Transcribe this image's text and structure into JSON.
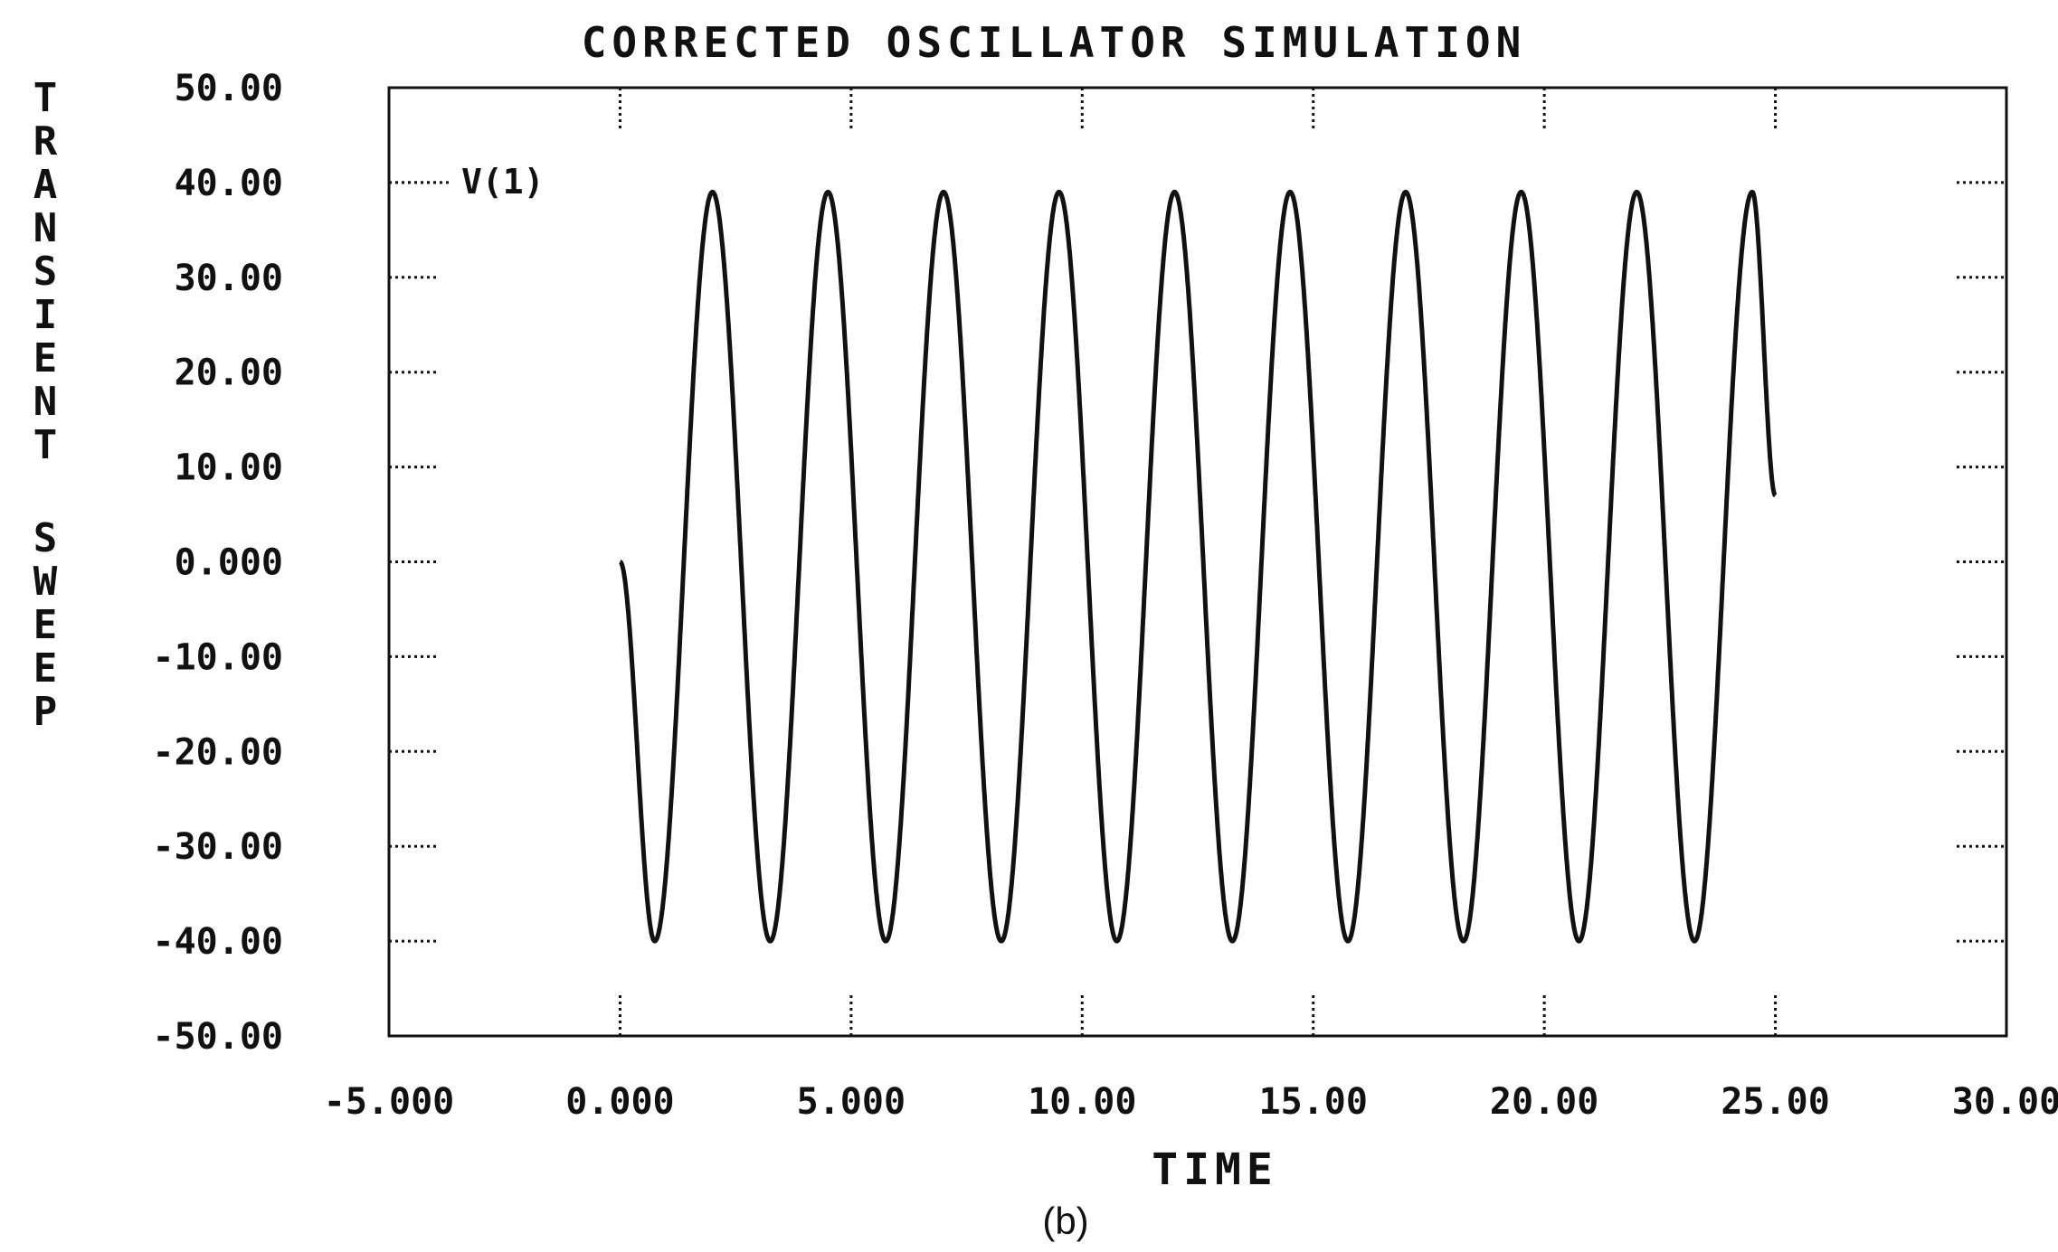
{
  "chart_data": {
    "type": "line",
    "title": "CORRECTED OSCILLATOR SIMULATION",
    "xlabel": "TIME",
    "ylabel": "TRANSIENT SWEEP",
    "caption": "(b)",
    "xlim": [
      -5,
      30
    ],
    "ylim": [
      -50,
      50
    ],
    "x_ticks": [
      -5,
      0,
      5,
      10,
      15,
      20,
      25,
      30
    ],
    "x_tick_labels": [
      "-5.000",
      "0.000",
      "5.000",
      "10.00",
      "15.00",
      "20.00",
      "25.00",
      "30.00"
    ],
    "y_ticks": [
      50,
      40,
      30,
      20,
      10,
      0,
      -10,
      -20,
      -30,
      -40,
      -50
    ],
    "y_tick_labels": [
      "50.00",
      "40.00",
      "30.00",
      "20.00",
      "10.00",
      "0.000",
      "-10.00",
      "-20.00",
      "-30.00",
      "-40.00",
      "-50.00"
    ],
    "grid": "dotted tick marks at major ticks",
    "legend": "top-left",
    "series": [
      {
        "name": "V(1)",
        "description_points": {
          "x": [
            0,
            0.75,
            2.0,
            3.25,
            4.5,
            5.75,
            7.0,
            8.25,
            9.5,
            10.75,
            12.0,
            13.25,
            14.5,
            15.75,
            17.0,
            18.25,
            19.5,
            20.75,
            22.0,
            23.25,
            24.5,
            25.0
          ],
          "y": [
            0,
            -40,
            39,
            -40,
            39,
            -40,
            39,
            -40,
            39,
            -40,
            39,
            -40,
            39,
            -40,
            39,
            -40,
            39,
            -40,
            39,
            -40,
            39,
            7
          ]
        }
      }
    ]
  }
}
